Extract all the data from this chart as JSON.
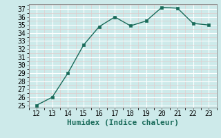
{
  "x": [
    12,
    13,
    14,
    15,
    16,
    17,
    18,
    19,
    20,
    21,
    22,
    23
  ],
  "y": [
    25.0,
    26.0,
    29.0,
    32.5,
    34.8,
    36.0,
    34.9,
    35.5,
    37.2,
    37.1,
    35.2,
    35.0
  ],
  "xlabel": "Humidex (Indice chaleur)",
  "ylim_min": 25,
  "ylim_max": 37.6,
  "xlim_min": 11.5,
  "xlim_max": 23.5,
  "yticks": [
    25,
    26,
    27,
    28,
    29,
    30,
    31,
    32,
    33,
    34,
    35,
    36,
    37
  ],
  "xticks": [
    12,
    13,
    14,
    15,
    16,
    17,
    18,
    19,
    20,
    21,
    22,
    23
  ],
  "line_color": "#1a6b5a",
  "marker_color": "#1a6b5a",
  "bg_color": "#cdeaea",
  "grid_major_color": "#ffffff",
  "grid_minor_color": "#e0cccc",
  "xlabel_fontsize": 8,
  "tick_fontsize": 7
}
